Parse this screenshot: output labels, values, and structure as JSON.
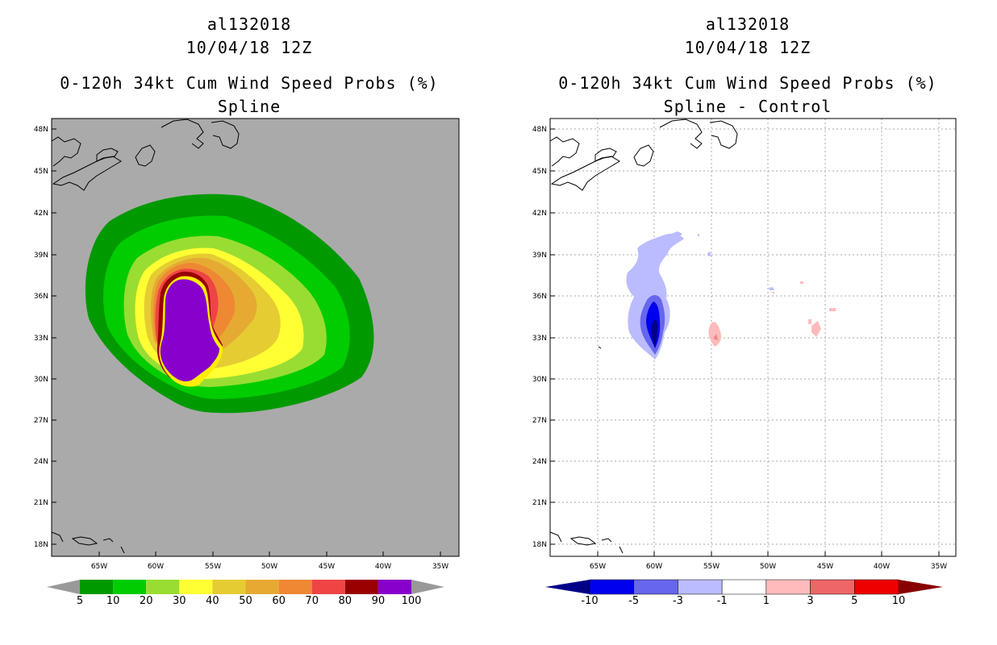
{
  "panels": [
    {
      "storm_id": "al132018",
      "datetime": "10/04/18 12Z",
      "product": "0-120h 34kt Cum Wind Speed Probs (%)",
      "subtitle": "Spline",
      "background_color": "#aaaaaa",
      "lat_labels": [
        "48N",
        "45N",
        "42N",
        "39N",
        "36N",
        "33N",
        "30N",
        "27N",
        "24N",
        "21N",
        "18N"
      ],
      "lon_labels": [
        "65W",
        "60W",
        "55W",
        "50W",
        "45W",
        "40W",
        "35W"
      ],
      "colorbar": {
        "colors": [
          "#009900",
          "#00cc00",
          "#99dd33",
          "#ffff33",
          "#e6cc33",
          "#e6aa33",
          "#ee8833",
          "#ee4444",
          "#990000",
          "#8800cc"
        ],
        "labels": [
          "5",
          "10",
          "20",
          "30",
          "40",
          "50",
          "60",
          "70",
          "80",
          "90",
          "100"
        ]
      }
    },
    {
      "storm_id": "al132018",
      "datetime": "10/04/18 12Z",
      "product": "0-120h 34kt Cum Wind Speed Probs (%)",
      "subtitle": "Spline - Control",
      "background_color": "#ffffff",
      "lat_labels": [
        "48N",
        "45N",
        "42N",
        "39N",
        "36N",
        "33N",
        "30N",
        "27N",
        "24N",
        "21N",
        "18N"
      ],
      "lon_labels": [
        "65W",
        "60W",
        "55W",
        "50W",
        "45W",
        "40W",
        "35W"
      ],
      "colorbar": {
        "colors": [
          "#000088",
          "#0000ee",
          "#6666ee",
          "#bbbbff",
          "#ffffff",
          "#ffbbbb",
          "#ee6666",
          "#ee0000",
          "#880000"
        ],
        "labels": [
          "-10",
          "-5",
          "-3",
          "-1",
          "1",
          "3",
          "5",
          "10"
        ]
      }
    }
  ]
}
